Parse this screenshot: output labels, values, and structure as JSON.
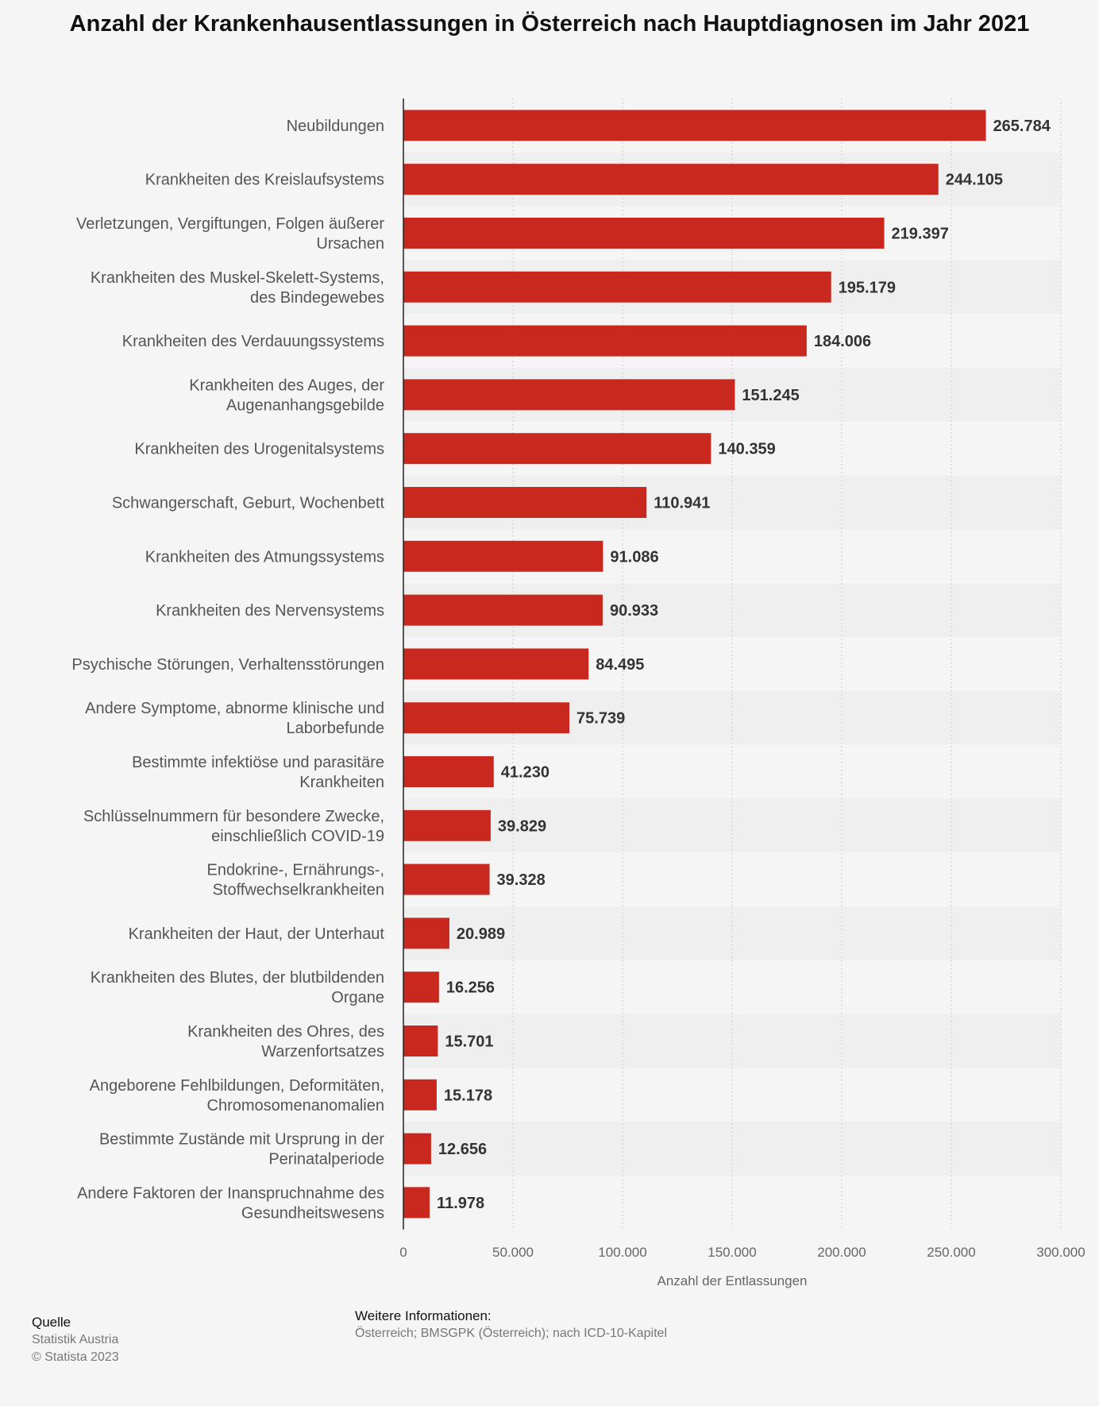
{
  "title": "Anzahl der Krankenhausentlassungen in Österreich nach Hauptdiagnosen im Jahr 2021",
  "colors": {
    "bar": "#c8281e",
    "band": "#efefef",
    "grid": "#cccccc",
    "axis": "#222222"
  },
  "chart_data": {
    "type": "bar",
    "orientation": "horizontal",
    "categories": [
      "Neubildungen",
      "Krankheiten des Kreislaufsystems",
      "Verletzungen, Vergiftungen, Folgen äußerer Ursachen",
      "Krankheiten des Muskel-Skelett-Systems, des Bindegewebes",
      "Krankheiten des Verdauungssystems",
      "Krankheiten des Auges, der Augenanhangsgebilde",
      "Krankheiten des Urogenitalsystems",
      "Schwangerschaft, Geburt, Wochenbett",
      "Krankheiten des Atmungssystems",
      "Krankheiten des Nervensystems",
      "Psychische Störungen, Verhaltensstörungen",
      "Andere Symptome, abnorme klinische und Laborbefunde",
      "Bestimmte infektiöse und parasitäre Krankheiten",
      "Schlüsselnummern für besondere Zwecke, einschließlich COVID-19",
      "Endokrine-, Ernährungs-, Stoffwechselkrankheiten",
      "Krankheiten der Haut, der Unterhaut",
      "Krankheiten des Blutes, der blutbildenden Organe",
      "Krankheiten des Ohres, des Warzenfortsatzes",
      "Angeborene Fehlbildungen, Deformitäten, Chromosomenanomalien",
      "Bestimmte Zustände mit Ursprung in der Perinatalperiode",
      "Andere Faktoren der Inanspruchnahme des Gesundheitswesens"
    ],
    "category_lines": [
      [
        "Neubildungen"
      ],
      [
        "Krankheiten des Kreislaufsystems"
      ],
      [
        "Verletzungen, Vergiftungen, Folgen äußerer",
        "Ursachen"
      ],
      [
        "Krankheiten des Muskel-Skelett-Systems,",
        "des Bindegewebes"
      ],
      [
        "Krankheiten des Verdauungssystems"
      ],
      [
        "Krankheiten des Auges, der",
        "Augenanhangsgebilde"
      ],
      [
        "Krankheiten des Urogenitalsystems"
      ],
      [
        "Schwangerschaft, Geburt, Wochenbett"
      ],
      [
        "Krankheiten des Atmungssystems"
      ],
      [
        "Krankheiten des Nervensystems"
      ],
      [
        "Psychische Störungen, Verhaltensstörungen"
      ],
      [
        "Andere Symptome, abnorme klinische und",
        "Laborbefunde"
      ],
      [
        "Bestimmte infektiöse und parasitäre",
        "Krankheiten"
      ],
      [
        "Schlüsselnummern für besondere Zwecke,",
        "einschließlich COVID-19"
      ],
      [
        "Endokrine-, Ernährungs-,",
        "Stoffwechselkrankheiten"
      ],
      [
        "Krankheiten der Haut, der Unterhaut"
      ],
      [
        "Krankheiten des Blutes, der blutbildenden",
        "Organe"
      ],
      [
        "Krankheiten des Ohres, des",
        "Warzenfortsatzes"
      ],
      [
        "Angeborene Fehlbildungen, Deformitäten,",
        "Chromosomenanomalien"
      ],
      [
        "Bestimmte Zustände mit Ursprung in der",
        "Perinatalperiode"
      ],
      [
        "Andere Faktoren der Inanspruchnahme des",
        "Gesundheitswesens"
      ]
    ],
    "values": [
      265784,
      244105,
      219397,
      195179,
      184006,
      151245,
      140359,
      110941,
      91086,
      90933,
      84495,
      75739,
      41230,
      39829,
      39328,
      20989,
      16256,
      15701,
      15178,
      12656,
      11978
    ],
    "value_labels": [
      "265.784",
      "244.105",
      "219.397",
      "195.179",
      "184.006",
      "151.245",
      "140.359",
      "110.941",
      "91.086",
      "90.933",
      "84.495",
      "75.739",
      "41.230",
      "39.829",
      "39.328",
      "20.989",
      "16.256",
      "15.701",
      "15.178",
      "12.656",
      "11.978"
    ],
    "xlim": [
      0,
      300000
    ],
    "x_ticks": [
      0,
      50000,
      100000,
      150000,
      200000,
      250000,
      300000
    ],
    "x_tick_labels": [
      "0",
      "50.000",
      "100.000",
      "150.000",
      "200.000",
      "250.000",
      "300.000"
    ],
    "xlabel": "Anzahl der Entlassungen",
    "grid": true,
    "legend": "none"
  },
  "footer": {
    "source_heading": "Quelle",
    "source": "Statistik Austria",
    "copyright": "© Statista 2023",
    "info_heading": "Weitere Informationen:",
    "info": "Österreich; BMSGPK (Österreich); nach ICD-10-Kapitel"
  }
}
